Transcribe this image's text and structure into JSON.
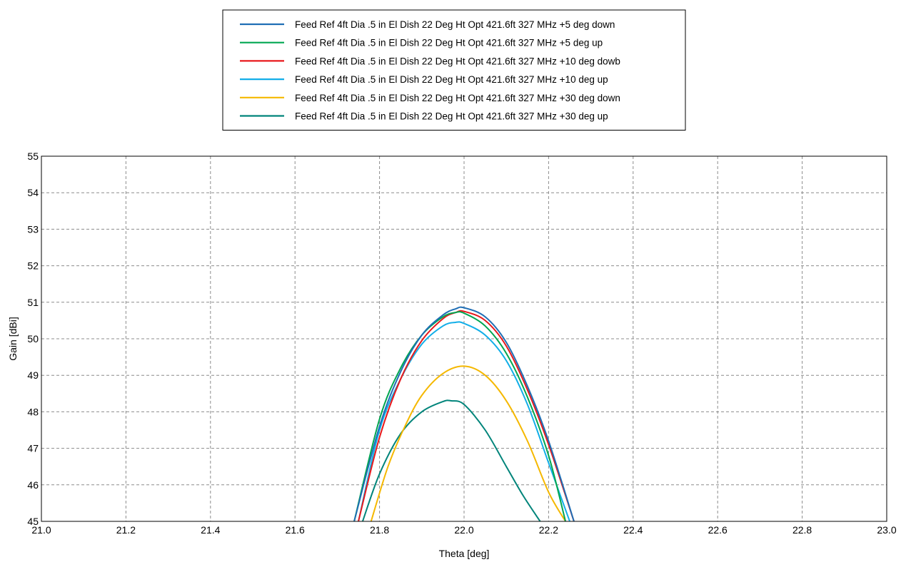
{
  "chart_data": {
    "type": "line",
    "title": "",
    "xlabel": "Theta [deg]",
    "ylabel": "Gain [dBi]",
    "xlim": [
      21.0,
      23.0
    ],
    "ylim": [
      45,
      55
    ],
    "xticks": [
      "21.0",
      "21.2",
      "21.4",
      "21.6",
      "21.8",
      "22.0",
      "22.2",
      "22.4",
      "22.6",
      "22.8",
      "23.0"
    ],
    "yticks": [
      "45",
      "46",
      "47",
      "48",
      "49",
      "50",
      "51",
      "52",
      "53",
      "54",
      "55"
    ],
    "grid": true,
    "legend_position": "top-center, outside plot",
    "series": [
      {
        "name": "Feed Ref 4ft Dia .5 in El Dish 22 Deg Ht Opt 421.6ft 327 MHz +5 deg down",
        "color": "#1f6eb5",
        "x": [
          21.74,
          21.8,
          21.85,
          21.9,
          21.95,
          21.98,
          22.0,
          22.05,
          22.1,
          22.15,
          22.2,
          22.26
        ],
        "y": [
          45.0,
          47.6,
          49.1,
          50.1,
          50.65,
          50.82,
          50.85,
          50.6,
          49.9,
          48.7,
          47.2,
          45.0
        ]
      },
      {
        "name": "Feed Ref 4ft Dia .5 in El Dish 22 Deg Ht Opt 421.6ft 327 MHz +5 deg up",
        "color": "#00a651",
        "x": [
          21.74,
          21.8,
          21.85,
          21.9,
          21.95,
          21.98,
          22.0,
          22.05,
          22.1,
          22.15,
          22.2,
          22.24
        ],
        "y": [
          45.0,
          47.8,
          49.2,
          50.1,
          50.6,
          50.72,
          50.7,
          50.35,
          49.6,
          48.4,
          46.8,
          45.0
        ]
      },
      {
        "name": "Feed Ref 4ft Dia .5 in El Dish 22 Deg Ht Opt 421.6ft 327 MHz +10 deg dowb",
        "color": "#e8191c",
        "x": [
          21.75,
          21.8,
          21.85,
          21.9,
          21.95,
          21.98,
          22.0,
          22.05,
          22.1,
          22.15,
          22.2,
          22.26
        ],
        "y": [
          45.0,
          47.3,
          48.9,
          49.95,
          50.55,
          50.72,
          50.75,
          50.5,
          49.8,
          48.6,
          47.1,
          45.0
        ]
      },
      {
        "name": "Feed Ref 4ft Dia .5 in El Dish 22 Deg Ht Opt 421.6ft 327 MHz +10 deg up",
        "color": "#12aee8",
        "x": [
          21.75,
          21.8,
          21.85,
          21.9,
          21.95,
          21.98,
          22.0,
          22.05,
          22.1,
          22.15,
          22.2,
          22.25
        ],
        "y": [
          45.0,
          47.5,
          48.9,
          49.85,
          50.35,
          50.45,
          50.42,
          50.1,
          49.4,
          48.2,
          46.6,
          45.0
        ]
      },
      {
        "name": "Feed Ref 4ft Dia .5 in El Dish 22 Deg Ht Opt 421.6ft 327 MHz +30 deg down",
        "color": "#f5b800",
        "x": [
          21.78,
          21.82,
          21.86,
          21.9,
          21.95,
          22.0,
          22.05,
          22.1,
          22.15,
          22.2,
          22.24
        ],
        "y": [
          45.0,
          46.5,
          47.6,
          48.45,
          49.05,
          49.25,
          49.0,
          48.3,
          47.2,
          45.8,
          45.0
        ]
      },
      {
        "name": "Feed Ref 4ft Dia .5 in El Dish 22 Deg Ht Opt 421.6ft 327 MHz +30 deg up",
        "color": "#00847a",
        "x": [
          21.76,
          21.8,
          21.85,
          21.9,
          21.95,
          21.97,
          22.0,
          22.05,
          22.1,
          22.14,
          22.18
        ],
        "y": [
          45.0,
          46.3,
          47.4,
          48.0,
          48.28,
          48.3,
          48.2,
          47.5,
          46.5,
          45.7,
          45.0
        ]
      }
    ]
  }
}
